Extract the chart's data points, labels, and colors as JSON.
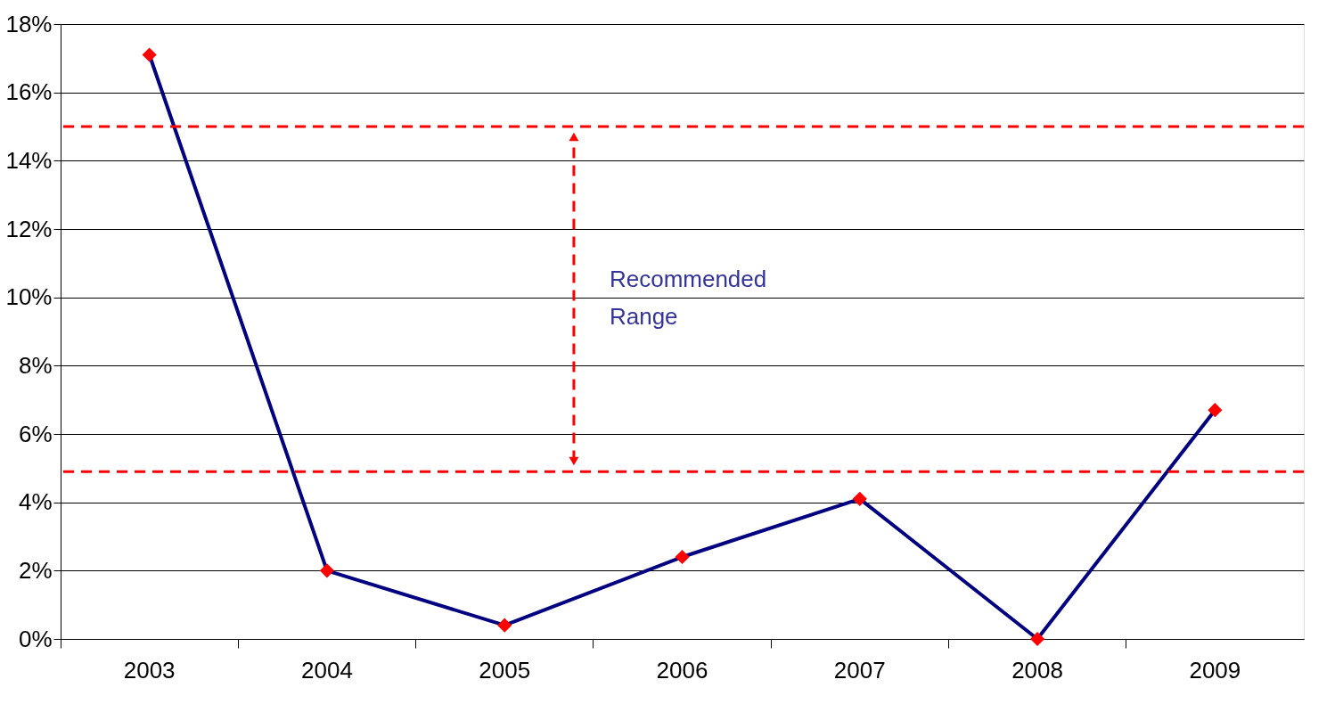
{
  "chart_data": {
    "type": "line",
    "categories": [
      "2003",
      "2004",
      "2005",
      "2006",
      "2007",
      "2008",
      "2009"
    ],
    "series": [
      {
        "color": "#000080",
        "colors": [
          "#ff0000",
          "#ff0000",
          "#ff0000",
          "#ff0000",
          "#ff0000",
          "#ff0000",
          "#ff0000"
        ],
        "values": [
          17.1,
          2.0,
          0.4,
          2.4,
          4.1,
          0.0,
          6.7
        ]
      }
    ],
    "ylim": [
      0,
      18
    ],
    "yticks": [
      {
        "value": 0,
        "label": "0%"
      },
      {
        "value": 2,
        "label": "2%"
      },
      {
        "value": 4,
        "label": "4%"
      },
      {
        "value": 6,
        "label": "6%"
      },
      {
        "value": 8,
        "label": "8%"
      },
      {
        "value": 10,
        "label": "10%"
      },
      {
        "value": 12,
        "label": "12%"
      },
      {
        "value": 14,
        "label": "14%"
      },
      {
        "value": 16,
        "label": "16%"
      },
      {
        "value": 18,
        "label": "18%"
      }
    ],
    "ref_lines": [
      {
        "axis": "y",
        "value": 15.0,
        "color": "#ff0000",
        "line_style": "dashed"
      },
      {
        "axis": "y",
        "value": 4.9,
        "color": "#ff0000",
        "line_style": "dashed"
      }
    ],
    "annotations": [
      "Recommended Range"
    ],
    "grid": "y",
    "marker": "diamond",
    "line_style": "solid"
  }
}
